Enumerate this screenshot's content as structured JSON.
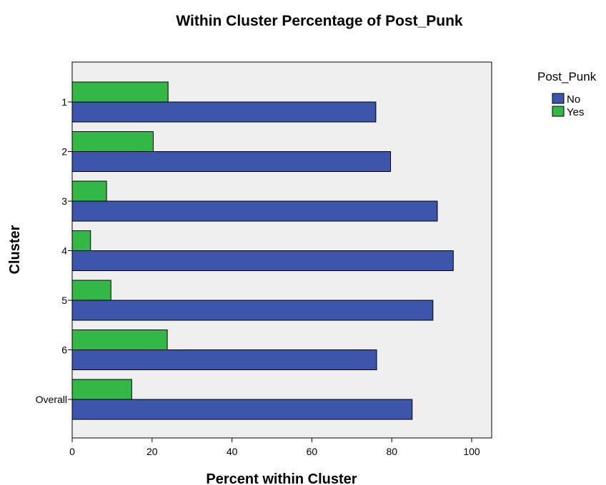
{
  "chart_data": {
    "type": "bar",
    "orientation": "horizontal",
    "title": "Within Cluster Percentage of Post_Punk",
    "xlabel": "Percent within Cluster",
    "ylabel": "Cluster",
    "xlim": [
      0,
      105
    ],
    "xticks": [
      "0",
      "20",
      "40",
      "60",
      "80",
      "100"
    ],
    "categories": [
      "1",
      "2",
      "3",
      "4",
      "5",
      "6",
      "Overall"
    ],
    "series": [
      {
        "name": "Yes",
        "color": "#33b848",
        "values": [
          24.0,
          20.3,
          8.6,
          4.6,
          9.7,
          23.8,
          14.9
        ]
      },
      {
        "name": "No",
        "color": "#3d55ab",
        "values": [
          76.0,
          79.7,
          91.4,
          95.4,
          90.3,
          76.2,
          85.1
        ]
      }
    ],
    "legend": {
      "title": "Post_Punk",
      "placement": "top-right",
      "entries": [
        {
          "label": "No",
          "color": "#3d55ab"
        },
        {
          "label": "Yes",
          "color": "#33b848"
        }
      ]
    },
    "plot_background": "#efefef",
    "grid": false
  }
}
